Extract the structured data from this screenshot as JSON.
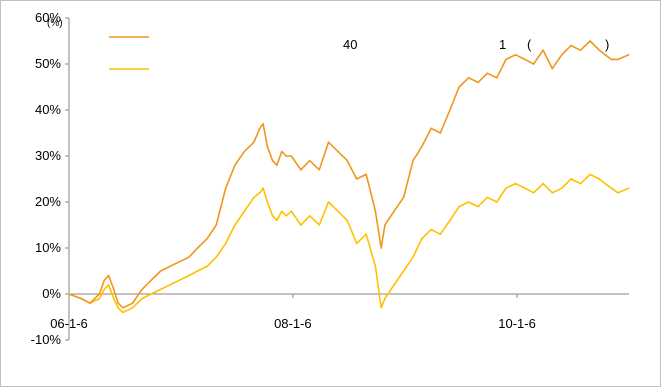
{
  "chart_data": {
    "type": "line",
    "title_parts": [
      "40",
      "1",
      "(",
      ")"
    ],
    "y_unit": "(%)",
    "xlabel": "",
    "ylabel": "",
    "ylim": [
      -10,
      60
    ],
    "yticks": [
      -10,
      0,
      10,
      20,
      30,
      40,
      50,
      60
    ],
    "ytick_labels": [
      "-10%",
      "0%",
      "10%",
      "20%",
      "30%",
      "40%",
      "50%",
      "60%"
    ],
    "xlim": [
      "2006-01-06",
      "2011-01-06"
    ],
    "xticks": [
      "2006-01-06",
      "2008-01-06",
      "2010-01-06"
    ],
    "xtick_labels": [
      "06-1-6",
      "08-1-6",
      "10-1-6"
    ],
    "grid": false,
    "legend_position": "top-left",
    "series": [
      {
        "name": "",
        "color": "#f0961e",
        "x": [
          "2006-01-06",
          "2006-02-15",
          "2006-03-15",
          "2006-04-15",
          "2006-05-01",
          "2006-05-15",
          "2006-06-01",
          "2006-06-15",
          "2006-07-01",
          "2006-08-01",
          "2006-09-01",
          "2006-10-01",
          "2006-11-01",
          "2006-12-01",
          "2007-01-01",
          "2007-02-01",
          "2007-03-01",
          "2007-04-01",
          "2007-05-01",
          "2007-06-01",
          "2007-07-01",
          "2007-08-01",
          "2007-09-01",
          "2007-09-20",
          "2007-10-01",
          "2007-10-15",
          "2007-11-01",
          "2007-11-15",
          "2007-12-01",
          "2007-12-15",
          "2008-01-01",
          "2008-02-01",
          "2008-03-01",
          "2008-04-01",
          "2008-05-01",
          "2008-06-01",
          "2008-07-01",
          "2008-08-01",
          "2008-09-01",
          "2008-10-01",
          "2008-10-20",
          "2008-11-01",
          "2008-12-01",
          "2009-01-01",
          "2009-02-01",
          "2009-03-01",
          "2009-04-01",
          "2009-05-01",
          "2009-06-01",
          "2009-07-01",
          "2009-08-01",
          "2009-09-01",
          "2009-10-01",
          "2009-11-01",
          "2009-12-01",
          "2010-01-01",
          "2010-02-01",
          "2010-03-01",
          "2010-04-01",
          "2010-05-01",
          "2010-06-01",
          "2010-07-01",
          "2010-08-01",
          "2010-09-01",
          "2010-10-01",
          "2010-10-20",
          "2010-11-10",
          "2010-12-01",
          "2011-01-05"
        ],
        "y": [
          0,
          -1,
          -2,
          0,
          3,
          4,
          1,
          -2,
          -3,
          -2,
          1,
          3,
          5,
          6,
          7,
          8,
          10,
          12,
          15,
          23,
          28,
          31,
          33,
          36,
          37,
          32,
          29,
          28,
          31,
          30,
          30,
          27,
          29,
          27,
          33,
          31,
          29,
          25,
          26,
          18,
          10,
          15,
          18,
          21,
          29,
          32,
          36,
          35,
          40,
          45,
          47,
          46,
          48,
          47,
          51,
          52,
          51,
          50,
          53,
          49,
          52,
          54,
          53,
          55,
          53,
          52,
          51,
          51,
          52
        ]
      },
      {
        "name": "",
        "color": "#ffc000",
        "x": [
          "2006-01-06",
          "2006-02-15",
          "2006-03-15",
          "2006-04-15",
          "2006-05-01",
          "2006-05-15",
          "2006-06-01",
          "2006-06-15",
          "2006-07-01",
          "2006-08-01",
          "2006-09-01",
          "2006-10-01",
          "2006-11-01",
          "2006-12-01",
          "2007-01-01",
          "2007-02-01",
          "2007-03-01",
          "2007-04-01",
          "2007-05-01",
          "2007-06-01",
          "2007-07-01",
          "2007-08-01",
          "2007-09-01",
          "2007-09-20",
          "2007-10-01",
          "2007-10-15",
          "2007-11-01",
          "2007-11-15",
          "2007-12-01",
          "2007-12-15",
          "2008-01-01",
          "2008-02-01",
          "2008-03-01",
          "2008-04-01",
          "2008-05-01",
          "2008-06-01",
          "2008-07-01",
          "2008-08-01",
          "2008-09-01",
          "2008-10-01",
          "2008-10-20",
          "2008-11-01",
          "2008-12-01",
          "2009-01-01",
          "2009-02-01",
          "2009-03-01",
          "2009-04-01",
          "2009-05-01",
          "2009-06-01",
          "2009-07-01",
          "2009-08-01",
          "2009-09-01",
          "2009-10-01",
          "2009-11-01",
          "2009-12-01",
          "2010-01-01",
          "2010-02-01",
          "2010-03-01",
          "2010-04-01",
          "2010-05-01",
          "2010-06-01",
          "2010-07-01",
          "2010-08-01",
          "2010-09-01",
          "2010-10-01",
          "2010-10-20",
          "2010-11-10",
          "2010-12-01",
          "2011-01-05"
        ],
        "y": [
          0,
          -1,
          -2,
          -1,
          1,
          2,
          -1,
          -3,
          -4,
          -3,
          -1,
          0,
          1,
          2,
          3,
          4,
          5,
          6,
          8,
          11,
          15,
          18,
          21,
          22,
          23,
          20,
          17,
          16,
          18,
          17,
          18,
          15,
          17,
          15,
          20,
          18,
          16,
          11,
          13,
          6,
          -3,
          -1,
          2,
          5,
          8,
          12,
          14,
          13,
          16,
          19,
          20,
          19,
          21,
          20,
          23,
          24,
          23,
          22,
          24,
          22,
          23,
          25,
          24,
          26,
          25,
          24,
          23,
          22,
          23
        ]
      }
    ]
  }
}
